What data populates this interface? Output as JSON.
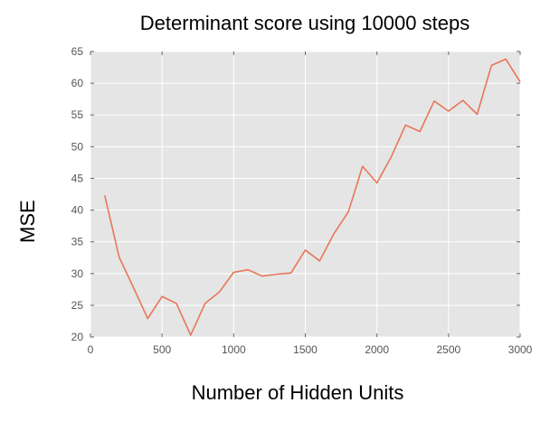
{
  "chart_data": {
    "type": "line",
    "title": "Determinant score using 10000 steps",
    "xlabel": "Number of Hidden Units",
    "ylabel": "MSE",
    "xlim": [
      0,
      3000
    ],
    "ylim": [
      20,
      65
    ],
    "xticks": [
      "0",
      "500",
      "1000",
      "1500",
      "2000",
      "2500",
      "3000"
    ],
    "yticks": [
      "20",
      "25",
      "30",
      "35",
      "40",
      "45",
      "50",
      "55",
      "60",
      "65"
    ],
    "grid": true,
    "series": [
      {
        "color": "#e8765a",
        "x": [
          100,
          200,
          300,
          400,
          500,
          600,
          700,
          800,
          900,
          1000,
          1100,
          1200,
          1300,
          1400,
          1500,
          1600,
          1700,
          1800,
          1900,
          2000,
          2100,
          2200,
          2300,
          2400,
          2500,
          2600,
          2700,
          2800,
          2900,
          3000
        ],
        "y": [
          42.3,
          32.6,
          27.8,
          22.9,
          26.4,
          25.3,
          20.3,
          25.3,
          27.1,
          30.2,
          30.6,
          29.6,
          29.9,
          30.1,
          33.7,
          32.0,
          36.3,
          39.7,
          46.9,
          44.3,
          48.4,
          53.4,
          52.4,
          57.2,
          55.6,
          57.3,
          55.1,
          62.8,
          63.8,
          60.2
        ]
      }
    ]
  }
}
